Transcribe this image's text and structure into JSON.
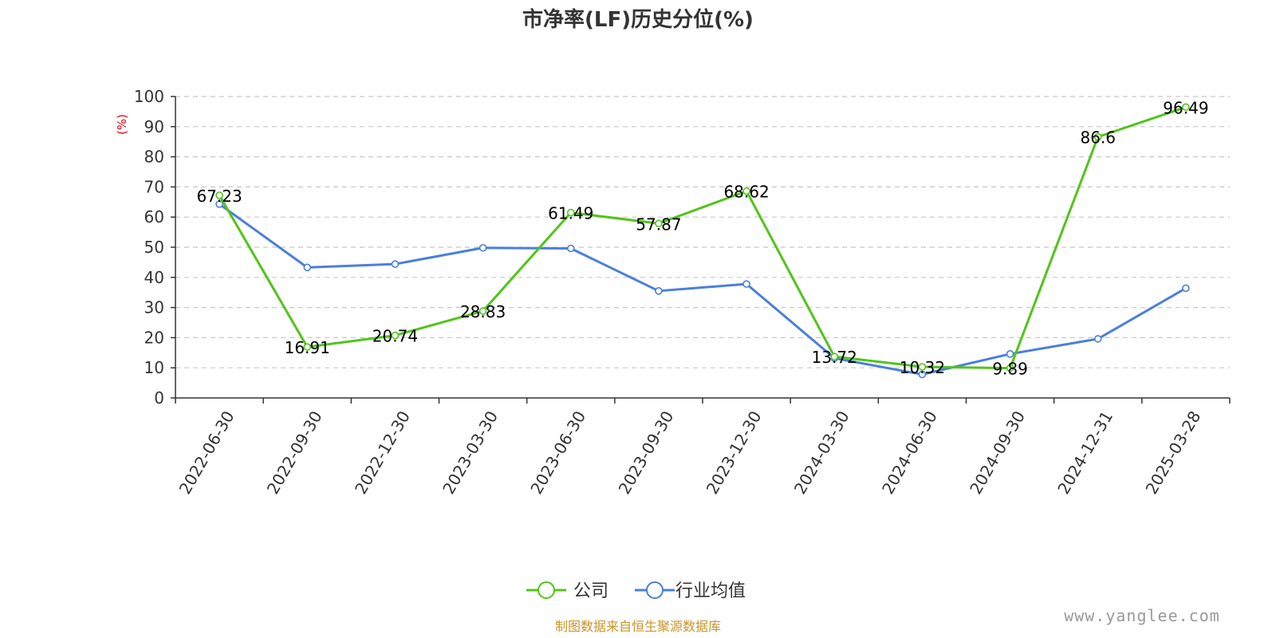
{
  "chart_data": {
    "type": "line",
    "title": "市净率(LF)历史分位(%)",
    "ylabel": "(%)",
    "ylim": [
      0,
      100
    ],
    "yticks": [
      0,
      10,
      20,
      30,
      40,
      50,
      60,
      70,
      80,
      90,
      100
    ],
    "grid": true,
    "legend_position": "bottom-center",
    "categories": [
      "2022-06-30",
      "2022-09-30",
      "2022-12-30",
      "2023-03-30",
      "2023-06-30",
      "2023-09-30",
      "2023-12-30",
      "2024-03-30",
      "2024-06-30",
      "2024-09-30",
      "2024-12-31",
      "2025-03-28"
    ],
    "series": [
      {
        "name": "公司",
        "color": "#52c41a",
        "values": [
          67.23,
          16.91,
          20.74,
          28.83,
          61.49,
          57.87,
          68.62,
          13.72,
          10.32,
          9.89,
          86.6,
          96.49
        ],
        "labels": [
          "67.23",
          "16.91",
          "20.74",
          "28.83",
          "61.49",
          "57.87",
          "68.62",
          "13.72",
          "10.32",
          "9.89",
          "86.6",
          "96.49"
        ]
      },
      {
        "name": "行业均值",
        "color": "#4a7fdd",
        "values": [
          64.3,
          43.3,
          44.4,
          49.8,
          49.6,
          35.5,
          37.8,
          13.2,
          7.8,
          14.6,
          19.6,
          36.4
        ]
      }
    ]
  },
  "source": "制图数据来自恒生聚源数据库",
  "watermark": "www.yanglee.com"
}
